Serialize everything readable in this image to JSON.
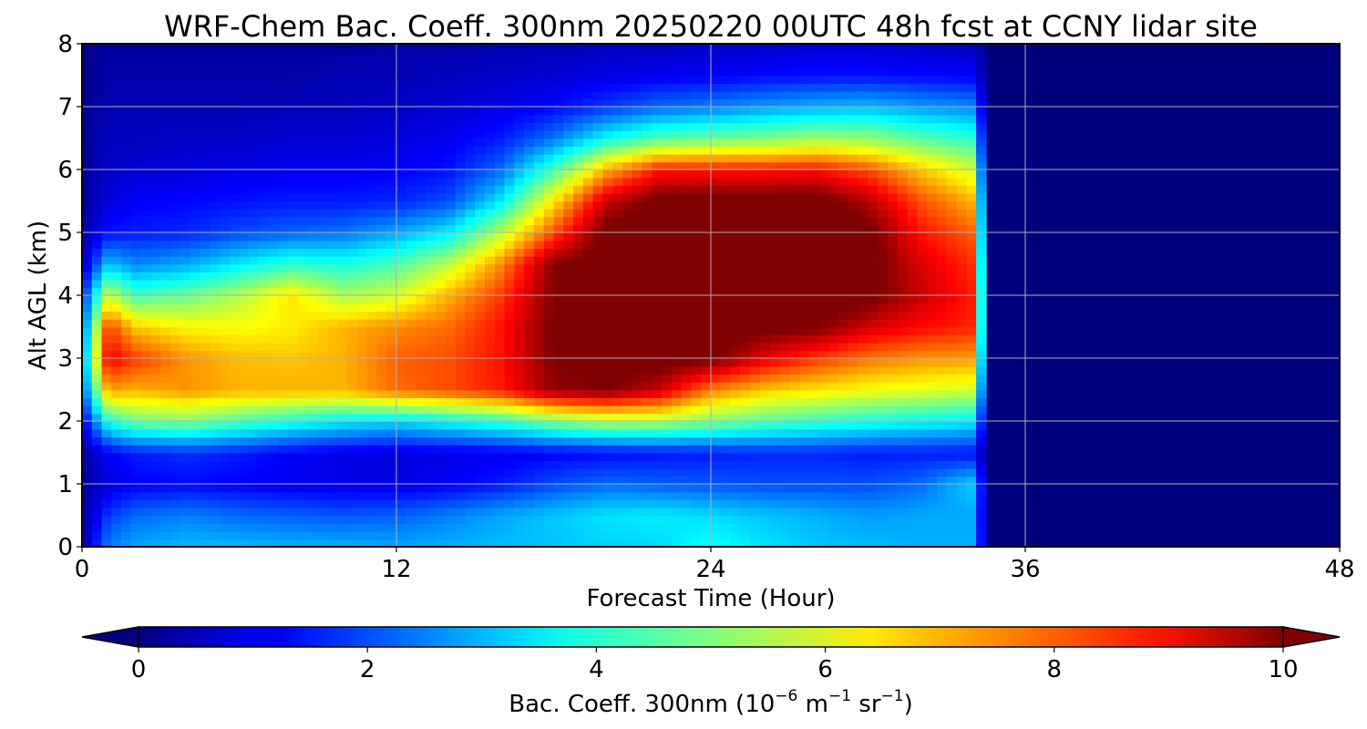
{
  "chart_data": {
    "type": "heatmap",
    "title": "WRF-Chem Bac. Coeff. 300nm  20250220 00UTC 48h fcst at CCNY lidar site",
    "xlabel": "Forecast Time (Hour)",
    "ylabel": "Alt AGL (km)",
    "xlim": [
      0,
      48
    ],
    "ylim": [
      0,
      8
    ],
    "xticks": [
      "0",
      "12",
      "24",
      "36",
      "48"
    ],
    "yticks": [
      "0",
      "1",
      "2",
      "3",
      "4",
      "5",
      "6",
      "7",
      "8"
    ],
    "grid": true,
    "colormap": "jet",
    "colorbar": {
      "label_main": "Bac. Coeff. 300nm  (10",
      "exp1": "−6",
      "mid": " m",
      "exp2": "−1",
      "mid2": " sr",
      "exp3": "−1",
      "end": ")",
      "range": [
        0,
        10
      ],
      "ticks": [
        "0",
        "2",
        "4",
        "6",
        "8",
        "10"
      ],
      "extend": "both"
    },
    "x": [
      0,
      1,
      2,
      4,
      6,
      8,
      10,
      12,
      14,
      16,
      18,
      20,
      22,
      24,
      26,
      28,
      30,
      32,
      34,
      34.5
    ],
    "y": [
      0,
      0.5,
      1,
      1.5,
      2,
      2.5,
      3,
      3.5,
      4,
      4.5,
      5,
      5.5,
      6,
      6.5,
      7,
      7.5,
      8
    ],
    "z": [
      [
        0.4,
        2.5,
        2.9,
        3.1,
        3.1,
        3.0,
        3.0,
        2.9,
        3.0,
        3.1,
        3.2,
        3.3,
        3.4,
        3.9,
        3.5,
        3.2,
        3.1,
        3.0,
        3.0,
        0.5
      ],
      [
        0.3,
        1.8,
        2.3,
        2.5,
        2.3,
        2.2,
        2.1,
        2.2,
        2.5,
        2.9,
        3.2,
        3.5,
        3.6,
        3.4,
        3.2,
        3.0,
        2.8,
        2.9,
        2.9,
        0.4
      ],
      [
        0.2,
        0.9,
        1.2,
        1.3,
        1.2,
        1.1,
        1.0,
        1.0,
        1.2,
        1.5,
        2.0,
        2.3,
        2.2,
        2.1,
        2.0,
        2.0,
        2.0,
        2.3,
        3.3,
        0.4
      ],
      [
        0.3,
        1.2,
        1.5,
        1.7,
        1.5,
        1.2,
        1.0,
        0.9,
        1.0,
        1.1,
        1.2,
        1.3,
        1.4,
        1.5,
        1.6,
        1.6,
        1.5,
        1.5,
        1.4,
        0.3
      ],
      [
        1.0,
        4.0,
        4.8,
        5.0,
        4.5,
        4.0,
        3.6,
        3.4,
        3.8,
        4.2,
        5.0,
        5.5,
        5.5,
        5.0,
        4.6,
        4.3,
        4.0,
        3.8,
        3.6,
        0.6
      ],
      [
        2.0,
        7.2,
        7.0,
        7.3,
        7.0,
        7.0,
        7.0,
        7.7,
        8.0,
        8.5,
        9.8,
        10.0,
        9.3,
        7.5,
        6.8,
        6.5,
        6.2,
        6.0,
        5.8,
        1.0
      ],
      [
        2.4,
        8.9,
        8.2,
        7.3,
        6.9,
        6.8,
        7.0,
        7.8,
        8.0,
        8.6,
        10.0,
        10.2,
        10.4,
        10.1,
        9.0,
        8.2,
        7.6,
        7.3,
        7.2,
        1.2
      ],
      [
        2.0,
        8.2,
        6.8,
        6.3,
        6.2,
        6.4,
        7.0,
        7.4,
        7.7,
        8.6,
        10.1,
        10.4,
        10.4,
        10.4,
        10.2,
        10.0,
        9.2,
        8.7,
        8.4,
        1.2
      ],
      [
        1.5,
        5.8,
        4.4,
        4.8,
        5.5,
        6.5,
        5.4,
        5.8,
        7.0,
        8.2,
        10.0,
        10.4,
        10.4,
        10.4,
        10.4,
        10.4,
        10.2,
        9.3,
        8.5,
        1.2
      ],
      [
        0.6,
        3.2,
        2.6,
        2.9,
        3.6,
        4.2,
        4.0,
        4.5,
        5.6,
        7.4,
        10.0,
        10.4,
        10.4,
        10.4,
        10.4,
        10.4,
        10.3,
        9.1,
        8.3,
        1.0
      ],
      [
        0.3,
        1.4,
        1.5,
        1.6,
        2.0,
        2.2,
        2.4,
        2.9,
        3.6,
        5.6,
        8.0,
        10.3,
        10.4,
        10.4,
        10.4,
        10.4,
        10.3,
        8.6,
        7.8,
        0.8
      ],
      [
        0.2,
        0.9,
        1.2,
        1.3,
        1.4,
        1.5,
        1.5,
        1.6,
        2.0,
        3.6,
        6.5,
        9.3,
        10.3,
        10.4,
        10.4,
        10.4,
        9.5,
        8.0,
        7.0,
        0.7
      ],
      [
        0.2,
        0.7,
        0.8,
        0.9,
        1.0,
        1.1,
        1.1,
        1.2,
        1.4,
        2.3,
        4.4,
        7.0,
        8.5,
        8.5,
        8.5,
        8.6,
        8.0,
        6.8,
        5.8,
        0.6
      ],
      [
        0.2,
        0.6,
        0.6,
        0.7,
        0.7,
        0.8,
        0.8,
        0.9,
        1.1,
        1.5,
        2.4,
        3.8,
        4.6,
        4.8,
        5.0,
        5.3,
        5.2,
        4.6,
        4.2,
        0.5
      ],
      [
        0.2,
        0.5,
        0.5,
        0.5,
        0.5,
        0.6,
        0.6,
        0.7,
        0.8,
        1.0,
        1.3,
        1.8,
        2.3,
        2.5,
        2.8,
        3.0,
        3.1,
        2.8,
        2.6,
        0.4
      ],
      [
        0.1,
        0.4,
        0.4,
        0.4,
        0.4,
        0.4,
        0.5,
        0.5,
        0.6,
        0.7,
        0.8,
        1.0,
        1.1,
        1.2,
        1.3,
        1.4,
        1.4,
        1.3,
        1.2,
        0.3
      ],
      [
        0.1,
        0.3,
        0.3,
        0.3,
        0.3,
        0.3,
        0.3,
        0.4,
        0.4,
        0.5,
        0.5,
        0.6,
        0.6,
        0.7,
        0.7,
        0.8,
        0.8,
        0.7,
        0.6,
        0.2
      ]
    ]
  }
}
